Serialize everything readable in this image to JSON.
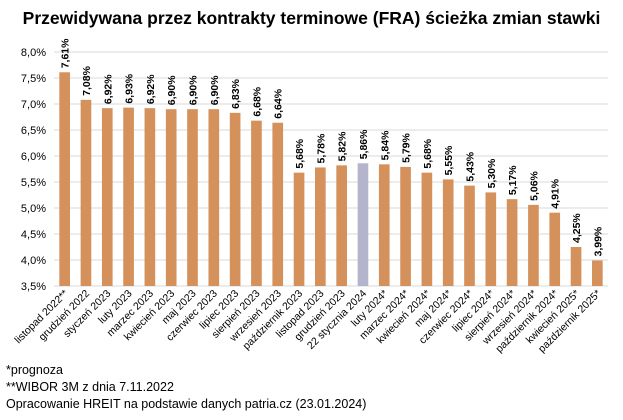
{
  "chart_data": {
    "type": "bar",
    "title": "Przewidywana przez kontrakty terminowe (FRA) ścieżka zmian stawki",
    "xlabel": "",
    "ylabel": "",
    "ylim": [
      3.5,
      8.0
    ],
    "yticks": [
      3.5,
      4.0,
      4.5,
      5.0,
      5.5,
      6.0,
      6.5,
      7.0,
      7.5,
      8.0
    ],
    "ytick_labels": [
      "3,5%",
      "4,0%",
      "4,5%",
      "5,0%",
      "5,5%",
      "6,0%",
      "6,5%",
      "7,0%",
      "7,5%",
      "8,0%"
    ],
    "grid": true,
    "legend": "none",
    "categories": [
      "listopad 2022**",
      "grudzień 2022",
      "styczeń 2023",
      "luty 2023",
      "marzec 2023",
      "kwiecień 2023",
      "maj 2023",
      "czerwiec 2023",
      "lipiec 2023",
      "sierpień 2023",
      "wrzesień 2023",
      "październik 2023",
      "listopad 2023",
      "grudzień 2023",
      "22 stycznia 2024",
      "luty 2024*",
      "marzec 2024*",
      "kwiecień 2024*",
      "maj 2024*",
      "czerwiec 2024*",
      "lipiec 2024*",
      "sierpień 2024*",
      "wrzesień 2024*",
      "październik 2024*",
      "kwiecień 2025*",
      "październik 2025*"
    ],
    "values": [
      7.61,
      7.08,
      6.92,
      6.93,
      6.92,
      6.9,
      6.9,
      6.9,
      6.83,
      6.68,
      6.64,
      5.68,
      5.78,
      5.82,
      5.86,
      5.84,
      5.79,
      5.68,
      5.55,
      5.43,
      5.3,
      5.17,
      5.06,
      4.91,
      4.25,
      3.99
    ],
    "data_labels": [
      "7,61%",
      "7,08%",
      "6,92%",
      "6,93%",
      "6,92%",
      "6,90%",
      "6,90%",
      "6,90%",
      "6,83%",
      "6,68%",
      "6,64%",
      "5,68%",
      "5,78%",
      "5,82%",
      "5,86%",
      "5,84%",
      "5,79%",
      "5,68%",
      "5,55%",
      "5,43%",
      "5,30%",
      "5,17%",
      "5,06%",
      "4,91%",
      "4,25%",
      "3,99%"
    ],
    "highlight_index": 14,
    "colors": {
      "bar": "#D4915C",
      "highlight": "#B4B4CC",
      "grid": "#D9D9D9"
    }
  },
  "notes": [
    "*prognoza",
    "**WIBOR 3M z dnia 7.11.2022",
    "Opracowanie HREIT na podstawie danych patria.cz (23.01.2024)"
  ]
}
